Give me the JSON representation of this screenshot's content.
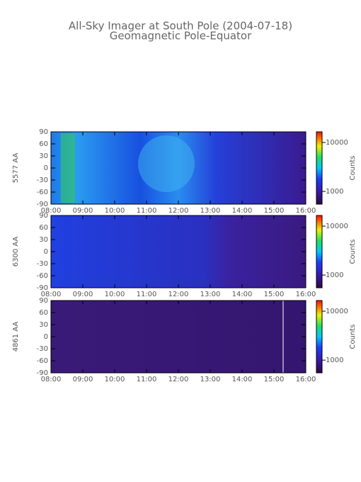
{
  "title": "All-Sky Imager at South Pole (2004-07-18)",
  "subtitle": "Geomagnetic Pole-Equator",
  "chart_data": [
    {
      "type": "heatmap",
      "ylabel": "5577 AA",
      "colorbar_label": "Counts",
      "xlim": [
        8,
        16
      ],
      "xticks": [
        {
          "value": 8,
          "label": "08:00"
        },
        {
          "value": 9,
          "label": "09:00"
        },
        {
          "value": 10,
          "label": "10:00"
        },
        {
          "value": 11,
          "label": "11:00"
        },
        {
          "value": 12,
          "label": "12:00"
        },
        {
          "value": 13,
          "label": "13:00"
        },
        {
          "value": 14,
          "label": "14:00"
        },
        {
          "value": 15,
          "label": "15:00"
        },
        {
          "value": 16,
          "label": "16:00"
        }
      ],
      "ylim": [
        -90,
        90
      ],
      "yticks": [
        -90,
        -60,
        -30,
        0,
        30,
        60,
        90
      ],
      "clim": [
        550,
        16500
      ],
      "cticks": [
        1000,
        10000
      ],
      "color_log": true
    },
    {
      "type": "heatmap",
      "ylabel": "6300 AA",
      "colorbar_label": "Counts",
      "xlim": [
        8,
        16
      ],
      "xticks": [
        {
          "value": 8,
          "label": "08:00"
        },
        {
          "value": 9,
          "label": "09:00"
        },
        {
          "value": 10,
          "label": "10:00"
        },
        {
          "value": 11,
          "label": "11:00"
        },
        {
          "value": 12,
          "label": "12:00"
        },
        {
          "value": 13,
          "label": "13:00"
        },
        {
          "value": 14,
          "label": "14:00"
        },
        {
          "value": 15,
          "label": "15:00"
        },
        {
          "value": 16,
          "label": "16:00"
        }
      ],
      "ylim": [
        -90,
        90
      ],
      "yticks": [
        -90,
        -60,
        -30,
        0,
        30,
        60,
        90
      ],
      "clim": [
        550,
        16500
      ],
      "cticks": [
        1000,
        10000
      ],
      "color_log": true
    },
    {
      "type": "heatmap",
      "ylabel": "4861 AA",
      "colorbar_label": "Counts",
      "xlim": [
        8,
        16
      ],
      "xticks": [
        {
          "value": 8,
          "label": "08:00"
        },
        {
          "value": 9,
          "label": "09:00"
        },
        {
          "value": 10,
          "label": "10:00"
        },
        {
          "value": 11,
          "label": "11:00"
        },
        {
          "value": 12,
          "label": "12:00"
        },
        {
          "value": 13,
          "label": "13:00"
        },
        {
          "value": 14,
          "label": "14:00"
        },
        {
          "value": 15,
          "label": "15:00"
        },
        {
          "value": 16,
          "label": "16:00"
        }
      ],
      "ylim": [
        -90,
        90
      ],
      "yticks": [
        -90,
        -60,
        -30,
        0,
        30,
        60,
        90
      ],
      "clim": [
        550,
        16500
      ],
      "cticks": [
        1000,
        10000
      ],
      "color_log": true
    }
  ]
}
